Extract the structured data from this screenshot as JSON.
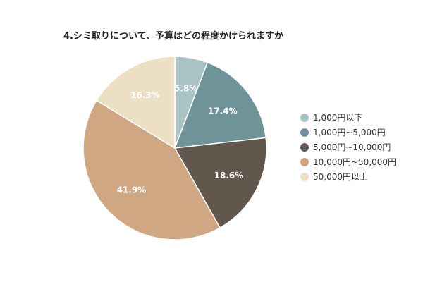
{
  "chart_data": {
    "type": "pie",
    "title": "4.シミ取りについて、予算はどの程度かけられますか",
    "categories": [
      "1,000円以下",
      "1,000円~5,000円",
      "5,000円~10,000円",
      "10,000円~50,000円",
      "50,000円以上"
    ],
    "values": [
      5.8,
      17.4,
      18.6,
      41.9,
      16.3
    ],
    "value_labels": [
      "5.8%",
      "17.4%",
      "18.6%",
      "41.9%",
      "16.3%"
    ],
    "colors": [
      "#a9c2c3",
      "#6e9398",
      "#62574d",
      "#cfa883",
      "#ecdfc4"
    ],
    "legend_position": "right",
    "start": "top",
    "direction": "clockwise"
  }
}
